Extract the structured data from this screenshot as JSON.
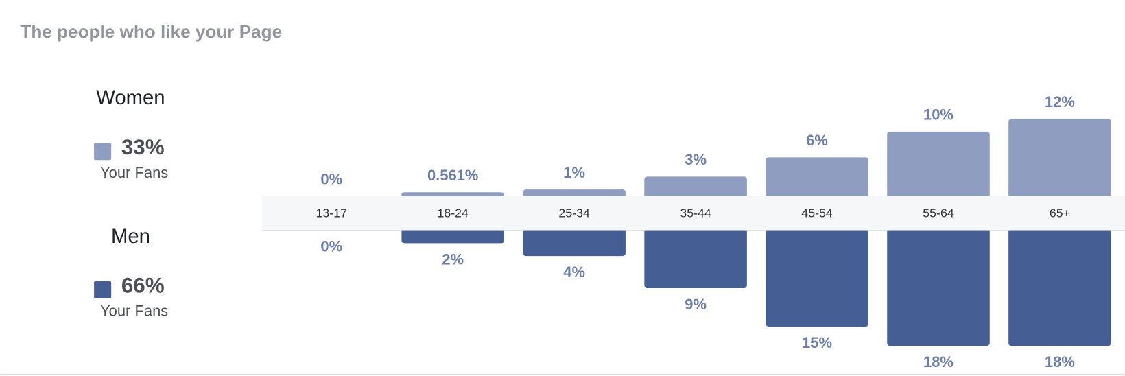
{
  "chart_data": {
    "type": "diverging-bar",
    "title": "The people who like your Page",
    "categories": [
      "13-17",
      "18-24",
      "25-34",
      "35-44",
      "45-54",
      "55-64",
      "65+"
    ],
    "series": [
      {
        "name": "Women",
        "color": "#8f9dc0",
        "values": [
          0,
          0.561,
          1,
          3,
          6,
          10,
          12
        ],
        "value_labels": [
          "0%",
          "0.561%",
          "1%",
          "3%",
          "6%",
          "10%",
          "12%"
        ],
        "share": 33,
        "share_label": "33%",
        "share_caption": "Your Fans"
      },
      {
        "name": "Men",
        "color": "#455f94",
        "values": [
          0,
          2,
          4,
          9,
          15,
          18,
          18
        ],
        "value_labels": [
          "0%",
          "2%",
          "4%",
          "9%",
          "15%",
          "18%",
          "18%"
        ],
        "share": 66,
        "share_label": "66%",
        "share_caption": "Your Fans"
      }
    ]
  }
}
